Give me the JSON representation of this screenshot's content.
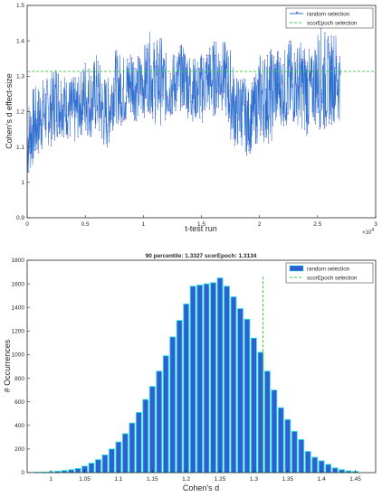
{
  "chart_data": [
    {
      "type": "line",
      "title": "",
      "xlabel": "t-test run",
      "ylabel": "Cohen's d effect-size",
      "x_exponent_label": "×10",
      "x_exponent_power": "4",
      "xlim": [
        0,
        3
      ],
      "ylim": [
        0.9,
        1.5
      ],
      "xticks": [
        0,
        0.5,
        1,
        1.5,
        2,
        2.5,
        3
      ],
      "yticks": [
        0.9,
        1,
        1.1,
        1.2,
        1.3,
        1.4,
        1.5
      ],
      "xtick_labels": [
        "0",
        "0.5",
        "1",
        "1.5",
        "2",
        "2.5",
        "3"
      ],
      "ytick_labels": [
        "0.9",
        "1",
        "1.1",
        "1.2",
        "1.3",
        "1.4",
        "1.5"
      ],
      "legend_position": "top-right",
      "series": [
        {
          "name": "random selection",
          "color": "#2b6fcf",
          "marker_color": "#9a5fd0",
          "x": [
            0,
            0.05,
            0.1,
            0.15,
            0.2,
            0.25,
            0.3,
            0.35,
            0.4,
            0.45,
            0.5,
            0.55,
            0.6,
            0.65,
            0.7,
            0.75,
            0.8,
            0.85,
            0.9,
            0.95,
            1,
            1.05,
            1.1,
            1.15,
            1.2,
            1.25,
            1.3,
            1.35,
            1.4,
            1.45,
            1.5,
            1.55,
            1.6,
            1.65,
            1.7,
            1.75,
            1.8,
            1.85,
            1.9,
            1.95,
            2,
            2.05,
            2.1,
            2.15,
            2.2,
            2.25,
            2.3,
            2.35,
            2.4,
            2.45,
            2.5,
            2.55,
            2.6,
            2.65,
            2.7
          ],
          "low": [
            1.0,
            1.04,
            1.07,
            1.1,
            1.1,
            1.12,
            1.13,
            1.12,
            1.09,
            1.13,
            1.13,
            1.12,
            1.14,
            1.09,
            1.09,
            1.17,
            1.16,
            1.16,
            1.18,
            1.17,
            1.18,
            1.2,
            1.16,
            1.16,
            1.17,
            1.18,
            1.2,
            1.2,
            1.17,
            1.17,
            1.16,
            1.19,
            1.18,
            1.2,
            1.2,
            1.12,
            1.09,
            1.1,
            1.07,
            1.1,
            1.11,
            1.11,
            1.11,
            1.16,
            1.16,
            1.14,
            1.16,
            1.16,
            1.12,
            1.16,
            1.16,
            1.13,
            1.16,
            1.17,
            1.17
          ],
          "high": [
            1.23,
            1.27,
            1.28,
            1.3,
            1.3,
            1.35,
            1.32,
            1.3,
            1.3,
            1.3,
            1.36,
            1.33,
            1.37,
            1.31,
            1.3,
            1.38,
            1.37,
            1.36,
            1.4,
            1.36,
            1.38,
            1.43,
            1.4,
            1.42,
            1.36,
            1.37,
            1.38,
            1.4,
            1.37,
            1.35,
            1.37,
            1.39,
            1.4,
            1.41,
            1.4,
            1.38,
            1.3,
            1.32,
            1.27,
            1.29,
            1.37,
            1.37,
            1.38,
            1.39,
            1.36,
            1.41,
            1.39,
            1.4,
            1.4,
            1.36,
            1.44,
            1.44,
            1.41,
            1.44,
            1.38
          ]
        },
        {
          "name": "scorEpoch selection",
          "color": "#33cc33",
          "style": "dashed",
          "y": 1.3134
        }
      ]
    },
    {
      "type": "bar",
      "title": "90 percentile: 1.3327 scorEpoch: 1.3134",
      "xlabel": "Cohen's d",
      "ylabel": "# Occurrences",
      "xlim": [
        0.965,
        1.48
      ],
      "ylim": [
        0,
        1800
      ],
      "xticks": [
        1,
        1.05,
        1.1,
        1.15,
        1.2,
        1.25,
        1.3,
        1.35,
        1.4,
        1.45
      ],
      "yticks": [
        0,
        200,
        400,
        600,
        800,
        1000,
        1200,
        1400,
        1600,
        1800
      ],
      "xtick_labels": [
        "1",
        "1.05",
        "1.1",
        "1.15",
        "1.2",
        "1.25",
        "1.3",
        "1.35",
        "1.4",
        "1.45"
      ],
      "ytick_labels": [
        "0",
        "200",
        "400",
        "600",
        "800",
        "1000",
        "1200",
        "1400",
        "1600",
        "1800"
      ],
      "legend_position": "top-right",
      "bin_width": 0.01,
      "bin_centers": [
        0.98,
        0.99,
        1.0,
        1.01,
        1.02,
        1.03,
        1.04,
        1.05,
        1.06,
        1.07,
        1.08,
        1.09,
        1.1,
        1.11,
        1.12,
        1.13,
        1.14,
        1.15,
        1.16,
        1.17,
        1.18,
        1.19,
        1.2,
        1.21,
        1.22,
        1.23,
        1.24,
        1.25,
        1.26,
        1.27,
        1.28,
        1.29,
        1.3,
        1.31,
        1.32,
        1.33,
        1.34,
        1.35,
        1.36,
        1.37,
        1.38,
        1.39,
        1.4,
        1.41,
        1.42,
        1.43,
        1.44,
        1.45
      ],
      "series": [
        {
          "name": "random selection",
          "color": "#2f5fd0",
          "edge_color": "#33e6e6",
          "values": [
            3,
            4,
            8,
            12,
            18,
            25,
            35,
            55,
            80,
            110,
            150,
            200,
            260,
            330,
            420,
            510,
            620,
            730,
            860,
            990,
            1150,
            1290,
            1430,
            1580,
            1590,
            1600,
            1610,
            1650,
            1580,
            1490,
            1390,
            1300,
            1140,
            1020,
            860,
            700,
            550,
            450,
            350,
            280,
            180,
            130,
            100,
            70,
            40,
            25,
            15,
            10
          ]
        },
        {
          "name": "scorEpoch selection",
          "color": "#33cc33",
          "style": "dashed",
          "x": 1.3134
        }
      ]
    }
  ]
}
